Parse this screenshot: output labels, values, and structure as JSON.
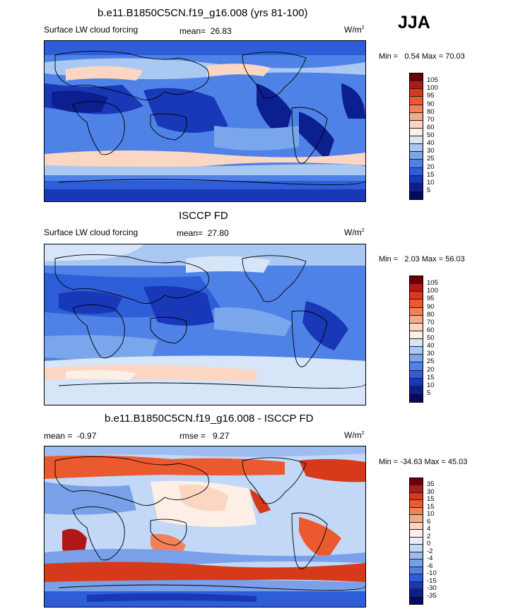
{
  "season": "JJA",
  "panels": [
    {
      "title": "b.e11.B1850C5CN.f19_g16.008 (yrs 81-100)",
      "left_label": "Surface LW cloud forcing",
      "mean_label": "mean=",
      "mean_value": "26.83",
      "units": "W/m",
      "units_exp": "2",
      "min_label": "Min =",
      "min_value": "0.54",
      "max_label": "Max =",
      "max_value": "70.03",
      "colorbar_levels": [
        "105",
        "100",
        "95",
        "90",
        "80",
        "70",
        "60",
        "50",
        "40",
        "30",
        "25",
        "20",
        "15",
        "10",
        "5"
      ]
    },
    {
      "title": "ISCCP FD",
      "left_label": "Surface LW cloud forcing",
      "mean_label": "mean=",
      "mean_value": "27.80",
      "units": "W/m",
      "units_exp": "2",
      "min_label": "Min =",
      "min_value": "2.03",
      "max_label": "Max =",
      "max_value": "56.03",
      "colorbar_levels": [
        "105",
        "100",
        "95",
        "90",
        "80",
        "70",
        "60",
        "50",
        "40",
        "30",
        "25",
        "20",
        "15",
        "10",
        "5"
      ]
    },
    {
      "title": "b.e11.B1850C5CN.f19_g16.008 - ISCCP FD",
      "left_label": "mean =",
      "left_value": "-0.97",
      "rmse_label": "rmse =",
      "rmse_value": "9.27",
      "units": "W/m",
      "units_exp": "2",
      "min_label": "Min =",
      "min_value": "-34.63",
      "max_label": "Max =",
      "max_value": "45.03",
      "colorbar_levels": [
        "35",
        "30",
        "15",
        "15",
        "10",
        "6",
        "4",
        "2",
        "0",
        "-2",
        "-4",
        "-6",
        "-10",
        "-15",
        "-30",
        "-35"
      ]
    }
  ],
  "colors": {
    "abs_scale": [
      "#6b0000",
      "#b01818",
      "#d63a1a",
      "#ea5a2e",
      "#f2815a",
      "#f7aa8a",
      "#fbd6c2",
      "#fdeee6",
      "#d6e6f8",
      "#a9c8f2",
      "#7aa6ec",
      "#4f82e6",
      "#2d5ed8",
      "#1838b8",
      "#0b1f8f",
      "#050a60"
    ],
    "diff_scale": [
      "#6b0000",
      "#b01818",
      "#d63a1a",
      "#ea5a2e",
      "#f2815a",
      "#f7aa8a",
      "#fbd6c2",
      "#fdeee6",
      "#e6eefb",
      "#c2d8f6",
      "#9dbcf0",
      "#7aa0ea",
      "#4f82e6",
      "#2d5ed8",
      "#1838b8",
      "#0b1f8f",
      "#050a60"
    ]
  }
}
